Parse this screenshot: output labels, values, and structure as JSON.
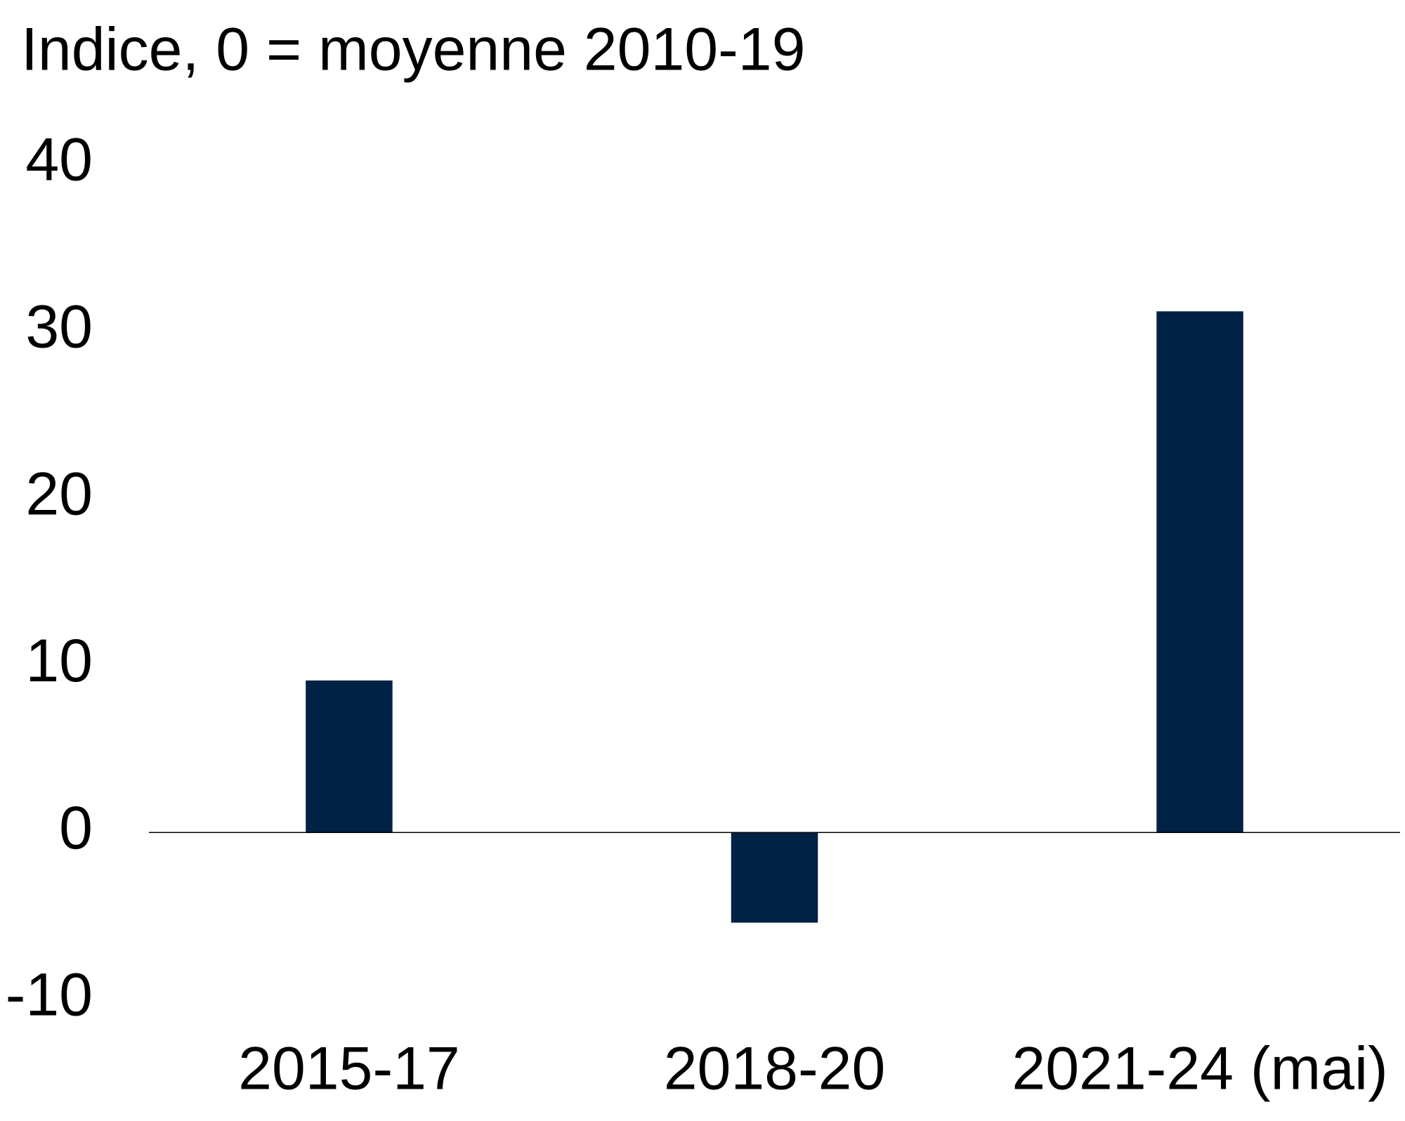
{
  "chart_data": {
    "type": "bar",
    "y_label": "Indice, 0 = moyenne 2010-19",
    "categories": [
      "2015-17",
      "2018-20",
      "2021-24 (mai)"
    ],
    "values": [
      9.1,
      -5.4,
      31.2
    ],
    "color": "#002244",
    "ylim": [
      -10,
      40
    ],
    "yticks": [
      -10,
      0,
      10,
      20,
      30,
      40
    ],
    "grid": false
  }
}
